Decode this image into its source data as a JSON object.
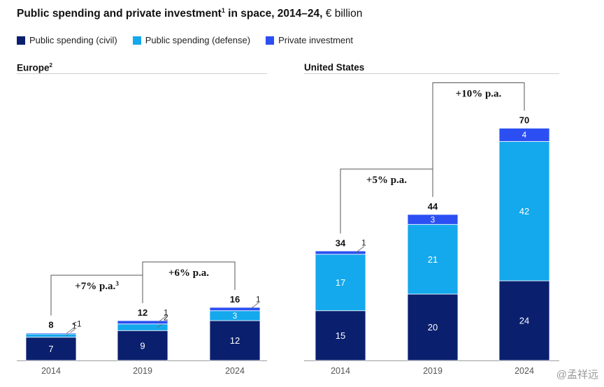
{
  "title": {
    "main": "Public spending and private investment",
    "sup": "1",
    "rest": " in space, 2014–24,",
    "unit": " € billion"
  },
  "legend": [
    {
      "label": "Public spending (civil)",
      "color": "#0a1f6e"
    },
    {
      "label": "Public spending (defense)",
      "color": "#14a8ec"
    },
    {
      "label": "Private investment",
      "color": "#2b4ff2"
    }
  ],
  "watermark": "@孟祥远",
  "chart_data": [
    {
      "type": "bar",
      "stacked": true,
      "title": "Europe",
      "title_sup": "2",
      "categories": [
        "2014",
        "2019",
        "2024"
      ],
      "ylim": [
        0,
        80
      ],
      "series": [
        {
          "name": "Public spending (civil)",
          "values": [
            7,
            9,
            12
          ],
          "labels": [
            "7",
            "9",
            "12"
          ],
          "color": "#0a1f6e"
        },
        {
          "name": "Public spending (defense)",
          "values": [
            1,
            2,
            3
          ],
          "labels": [
            "1",
            "2",
            "3"
          ],
          "color": "#14a8ec"
        },
        {
          "name": "Private investment",
          "values": [
            0.3,
            1,
            1
          ],
          "labels": [
            "<1",
            "1",
            "1"
          ],
          "color": "#2b4ff2"
        }
      ],
      "totals": [
        "8",
        "12",
        "16"
      ],
      "growth": [
        {
          "from": 0,
          "to": 1,
          "label": "+7% p.a.",
          "sup": "3"
        },
        {
          "from": 1,
          "to": 2,
          "label": "+6% p.a.",
          "sup": ""
        }
      ]
    },
    {
      "type": "bar",
      "stacked": true,
      "title": "United States",
      "title_sup": "",
      "categories": [
        "2014",
        "2019",
        "2024"
      ],
      "ylim": [
        0,
        80
      ],
      "series": [
        {
          "name": "Public spending (civil)",
          "values": [
            15,
            20,
            24
          ],
          "labels": [
            "15",
            "20",
            "24"
          ],
          "color": "#0a1f6e"
        },
        {
          "name": "Public spending (defense)",
          "values": [
            17,
            21,
            42
          ],
          "labels": [
            "17",
            "21",
            "42"
          ],
          "color": "#14a8ec"
        },
        {
          "name": "Private investment",
          "values": [
            1,
            3,
            4
          ],
          "labels": [
            "1",
            "3",
            "4"
          ],
          "color": "#2b4ff2"
        }
      ],
      "totals": [
        "34",
        "44",
        "70"
      ],
      "growth": [
        {
          "from": 0,
          "to": 1,
          "label": "+5% p.a.",
          "sup": ""
        },
        {
          "from": 1,
          "to": 2,
          "label": "+10% p.a.",
          "sup": ""
        }
      ]
    }
  ]
}
